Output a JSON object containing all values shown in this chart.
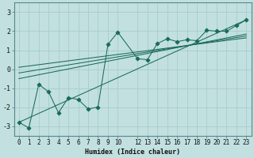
{
  "xlabel": "Humidex (Indice chaleur)",
  "ylabel": "",
  "bg_color": "#c2e0e0",
  "line_color": "#1a6b5a",
  "grid_color": "#a8cccc",
  "xlim": [
    -0.5,
    23.5
  ],
  "ylim": [
    -3.5,
    3.5
  ],
  "xticks": [
    0,
    1,
    2,
    3,
    4,
    5,
    6,
    7,
    8,
    9,
    10,
    12,
    13,
    14,
    15,
    16,
    17,
    18,
    19,
    20,
    21,
    22,
    23
  ],
  "yticks": [
    -3,
    -2,
    -1,
    0,
    1,
    2,
    3
  ],
  "data_x": [
    0,
    1,
    2,
    3,
    4,
    5,
    6,
    7,
    8,
    9,
    10,
    12,
    13,
    14,
    15,
    16,
    17,
    18,
    19,
    20,
    21,
    22,
    23
  ],
  "data_y": [
    -2.8,
    -3.1,
    -0.8,
    -1.2,
    -2.3,
    -1.5,
    -1.6,
    -2.1,
    -2.0,
    1.3,
    1.95,
    0.55,
    0.5,
    1.35,
    1.6,
    1.45,
    1.55,
    1.5,
    2.05,
    2.0,
    2.0,
    2.3,
    2.6
  ],
  "reg_lines": [
    {
      "x": [
        0,
        23
      ],
      "y": [
        -2.8,
        2.6
      ]
    },
    {
      "x": [
        0,
        23
      ],
      "y": [
        -0.5,
        1.85
      ]
    },
    {
      "x": [
        0,
        23
      ],
      "y": [
        -0.2,
        1.75
      ]
    },
    {
      "x": [
        0,
        23
      ],
      "y": [
        0.1,
        1.65
      ]
    }
  ],
  "xlabel_fontsize": 6.0,
  "tick_fontsize": 5.5,
  "ytick_fontsize": 6.0
}
